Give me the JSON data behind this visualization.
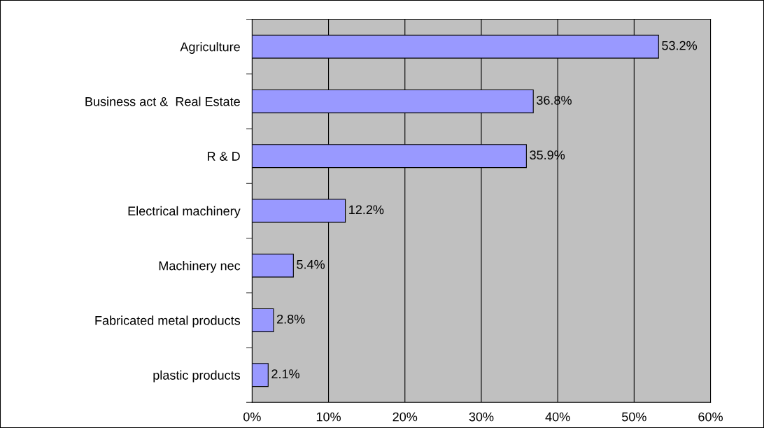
{
  "chart_data": {
    "type": "bar",
    "orientation": "horizontal",
    "categories": [
      "Agriculture",
      "Business act &  Real Estate",
      "R & D",
      "Electrical machinery",
      "Machinery nec",
      "Fabricated metal products",
      "plastic products"
    ],
    "values": [
      53.2,
      36.8,
      35.9,
      12.2,
      5.4,
      2.8,
      2.1
    ],
    "value_labels": [
      "53.2%",
      "36.8%",
      "35.9%",
      "12.2%",
      "5.4%",
      "2.8%",
      "2.1%"
    ],
    "color": "#9999ff",
    "xlim": [
      0,
      60
    ],
    "xticks": [
      {
        "value": 0,
        "label": "0%"
      },
      {
        "value": 10,
        "label": "10%"
      },
      {
        "value": 20,
        "label": "20%"
      },
      {
        "value": 30,
        "label": "30%"
      },
      {
        "value": 40,
        "label": "40%"
      },
      {
        "value": 50,
        "label": "50%"
      },
      {
        "value": 60,
        "label": "60%"
      }
    ],
    "grid": "x"
  }
}
